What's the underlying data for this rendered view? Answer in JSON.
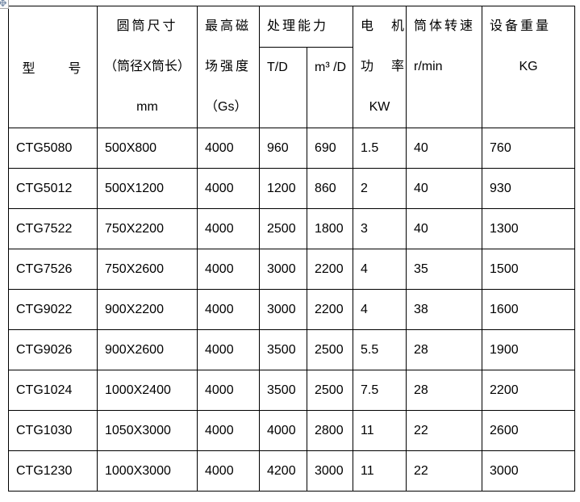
{
  "page": {
    "background": "#ffffff",
    "border_color": "#000000",
    "handle_icon_color": "#7e91ab"
  },
  "table": {
    "header": {
      "model": "型　　号",
      "cylinder_line1": "圆筒尺寸",
      "cylinder_line2": "（筒径X筒长）",
      "cylinder_line3": "mm",
      "magnetic_line1": "最高磁",
      "magnetic_line2": "场强度",
      "magnetic_line3": "（Gs）",
      "capacity_group": "处理能力",
      "capacity_sub1": "T/D",
      "capacity_sub2": "m³ /D",
      "motor_line1": "电　机",
      "motor_line2": "功　率",
      "motor_line3": "KW",
      "speed_line1": "筒体转速",
      "speed_line2": "r/min",
      "weight_line1": "设备重量",
      "weight_line2": "KG"
    },
    "rows": [
      {
        "model": "CTG5080",
        "cylinder": "500X800",
        "gs": "4000",
        "td": "960",
        "m3d": "690",
        "kw": "1.5",
        "rpm": "40",
        "kg": "760"
      },
      {
        "model": "CTG5012",
        "cylinder": "500X1200",
        "gs": "4000",
        "td": "1200",
        "m3d": "860",
        "kw": "2",
        "rpm": "40",
        "kg": "930"
      },
      {
        "model": "CTG7522",
        "cylinder": "750X2200",
        "gs": "4000",
        "td": "2500",
        "m3d": "1800",
        "kw": "3",
        "rpm": "40",
        "kg": "1300"
      },
      {
        "model": "CTG7526",
        "cylinder": "750X2600",
        "gs": "4000",
        "td": "3000",
        "m3d": "2200",
        "kw": "4",
        "rpm": "35",
        "kg": "1500"
      },
      {
        "model": "CTG9022",
        "cylinder": "900X2200",
        "gs": "4000",
        "td": "3000",
        "m3d": "2200",
        "kw": "4",
        "rpm": "38",
        "kg": "1600"
      },
      {
        "model": "CTG9026",
        "cylinder": "900X2600",
        "gs": "4000",
        "td": "3500",
        "m3d": "2500",
        "kw": "5.5",
        "rpm": "28",
        "kg": "1900"
      },
      {
        "model": "CTG1024",
        "cylinder": "1000X2400",
        "gs": "4000",
        "td": "3500",
        "m3d": "2500",
        "kw": "7.5",
        "rpm": "28",
        "kg": "2200"
      },
      {
        "model": "CTG1030",
        "cylinder": "1050X3000",
        "gs": "4000",
        "td": "4000",
        "m3d": "2800",
        "kw": "11",
        "rpm": "22",
        "kg": "2600"
      },
      {
        "model": "CTG1230",
        "cylinder": "1000X3000",
        "gs": "4000",
        "td": "4200",
        "m3d": "3000",
        "kw": "11",
        "rpm": "22",
        "kg": "3000"
      }
    ]
  }
}
